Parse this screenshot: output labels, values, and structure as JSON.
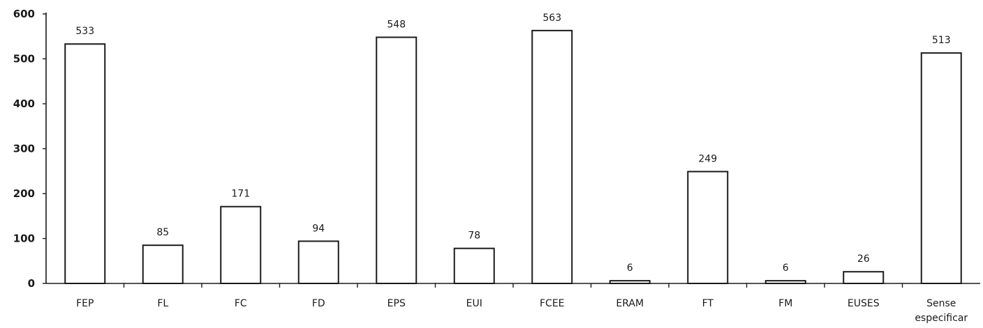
{
  "chart_data": {
    "type": "bar",
    "categories": [
      "FEP",
      "FL",
      "FC",
      "FD",
      "EPS",
      "EUI",
      "FCEE",
      "ERAM",
      "FT",
      "FM",
      "EUSES",
      "Sense especificar"
    ],
    "values": [
      533,
      85,
      171,
      94,
      548,
      78,
      563,
      6,
      249,
      6,
      26,
      513
    ],
    "data_labels": [
      "533",
      "85",
      "171",
      "94",
      "548",
      "78",
      "563",
      "6",
      "249",
      "6",
      "26",
      "513"
    ],
    "yticks": [
      0,
      100,
      200,
      300,
      400,
      500,
      600
    ],
    "ylim": [
      0,
      600
    ],
    "title": "",
    "xlabel": "",
    "ylabel": "",
    "grid": false,
    "legend": "none",
    "colors": {
      "bar_fill": "#ffffff",
      "bar_stroke": "#1a1a1a",
      "axis": "#1a1a1a"
    }
  }
}
